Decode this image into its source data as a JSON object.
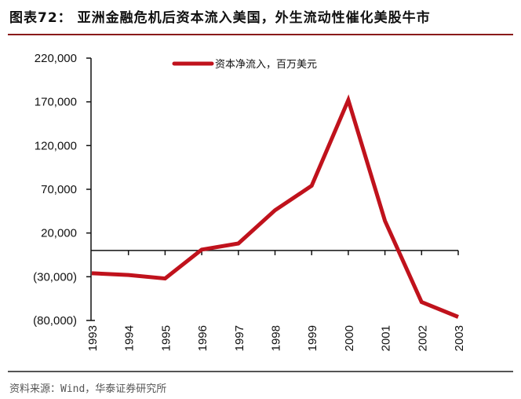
{
  "header": {
    "title": "图表72：  亚洲金融危机后资本流入美国，外生流动性催化美股牛市"
  },
  "footer": {
    "source": "资料来源：Wind，华泰证券研究所"
  },
  "colors": {
    "series": "#c0121c",
    "axis": "#111111",
    "title_rule": "#8a1a1a"
  },
  "chart_data": {
    "type": "line",
    "title": "亚洲金融危机后资本流入美国，外生流动性催化美股牛市",
    "xlabel": "",
    "ylabel": "",
    "categories": [
      "1993",
      "1994",
      "1995",
      "1996",
      "1997",
      "1998",
      "1999",
      "2000",
      "2001",
      "2002",
      "2003"
    ],
    "series": [
      {
        "name": "资本净流入，百万美元",
        "values": [
          -26000,
          -28000,
          -32000,
          1000,
          8000,
          46000,
          74000,
          172000,
          34000,
          -59000,
          -76000
        ]
      }
    ],
    "ylim": [
      -80000,
      220000
    ],
    "yticks": [
      220000,
      170000,
      120000,
      70000,
      20000,
      -30000,
      -80000
    ],
    "ytick_labels": [
      "220,000",
      "170,000",
      "120,000",
      "70,000",
      "20,000",
      "(30,000)",
      "(80,000)"
    ],
    "legend_position": "top-center",
    "grid": false,
    "zero_line": true
  }
}
